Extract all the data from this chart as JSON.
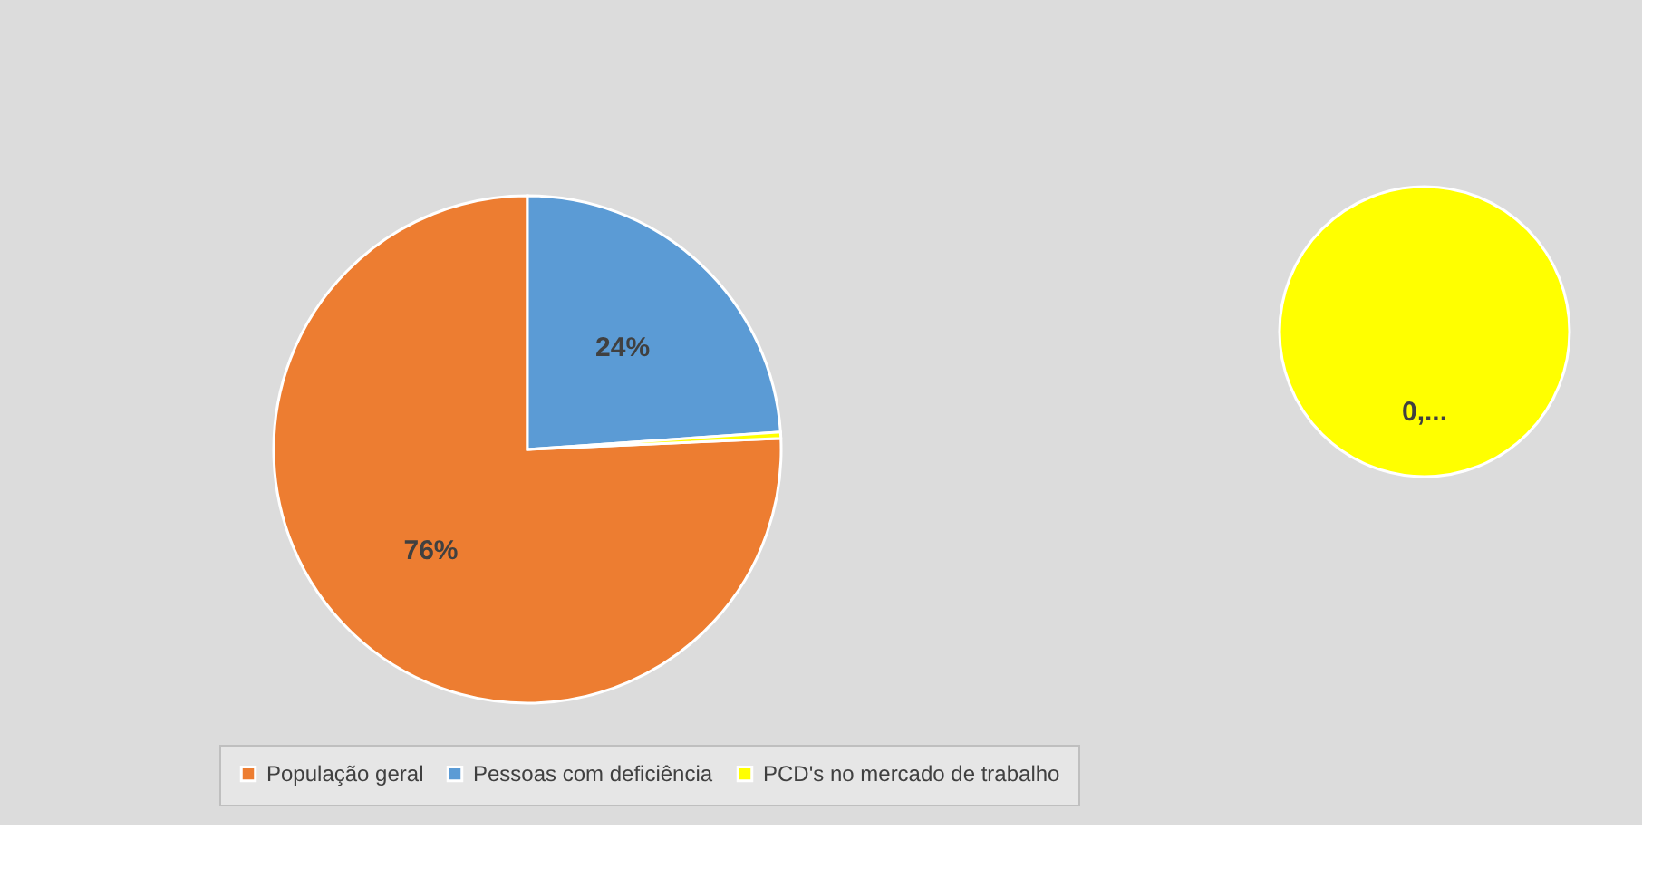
{
  "chart_data": [
    {
      "type": "pie",
      "categories": [
        "População geral",
        "Pessoas com deficiência",
        "PCD's no mercado de trabalho"
      ],
      "values": [
        76,
        24,
        0.4
      ],
      "colors": [
        "#ed7d31",
        "#5b9bd5",
        "#ffff00"
      ],
      "value_labels": [
        "76%",
        "24%",
        null
      ],
      "legend": "bottom"
    },
    {
      "type": "pie",
      "categories": [
        null
      ],
      "values": [
        100
      ],
      "colors": [
        "#ffff00"
      ],
      "value_labels": [
        "0,..."
      ]
    }
  ]
}
